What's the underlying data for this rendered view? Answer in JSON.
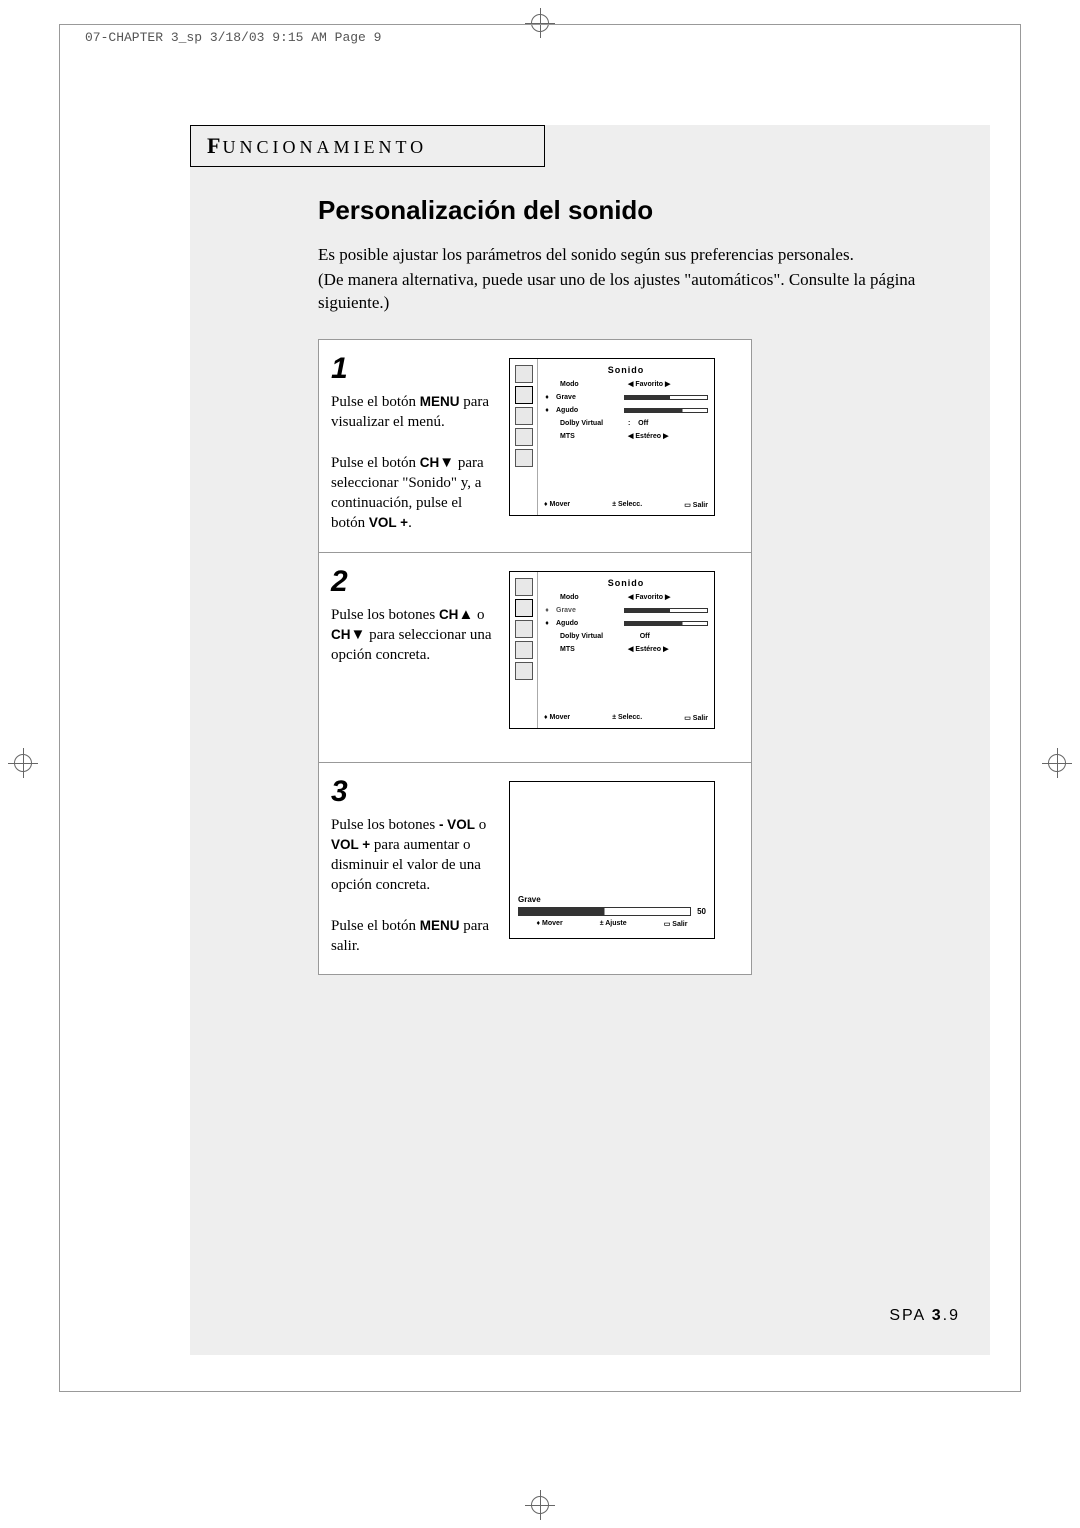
{
  "print": {
    "header": "07-CHAPTER 3_sp  3/18/03 9:15 AM  Page 9"
  },
  "section": {
    "label_initial": "F",
    "label_rest": "UNCIONAMIENTO"
  },
  "page": {
    "title": "Personalización del sonido",
    "intro1": "Es posible ajustar los parámetros del sonido según sus preferencias personales.",
    "intro2": "(De manera alternativa, puede usar uno de los ajustes \"automáticos\". Consulte la página siguiente.)",
    "footer_prefix": "SPA ",
    "footer_num": "3",
    "footer_suffix": ".9"
  },
  "steps": {
    "s1": {
      "num": "1",
      "p1a": "Pulse el botón ",
      "p1b": "MENU",
      "p1c": " para visualizar el menú.",
      "p2a": "Pulse el botón ",
      "p2b": "CH",
      "p2c": " para seleccionar \"Sonido\" y, a continuación, pulse el botón ",
      "p2d": "VOL +",
      "p2e": "."
    },
    "s2": {
      "num": "2",
      "p1a": "Pulse los botones ",
      "p1b": "CH",
      "p1c": " o ",
      "p1d": "CH",
      "p1e": " para seleccionar una opción concreta."
    },
    "s3": {
      "num": "3",
      "p1a": "Pulse los botones ",
      "p1b": "- VOL",
      "p1c": " o ",
      "p1d": "VOL +",
      "p1e": " para aumentar o disminuir el valor de una opción concreta.",
      "p2a": "Pulse el botón ",
      "p2b": "MENU",
      "p2c": " para salir."
    }
  },
  "osd": {
    "title": "Sonido",
    "rows": {
      "modo": {
        "label": "Modo",
        "value": "Favorito"
      },
      "grave": {
        "label": "Grave"
      },
      "agudo": {
        "label": "Agudo"
      },
      "dolby": {
        "label": "Dolby Virtual",
        "value": "Off"
      },
      "mts": {
        "label": "MTS",
        "value": "Estéreo"
      }
    },
    "footer": {
      "mover": "Mover",
      "selecc": "Selecc.",
      "salir": "Salir"
    },
    "slider": {
      "label": "Grave",
      "value": "50",
      "mover": "Mover",
      "ajuste": "Ajuste",
      "salir": "Salir"
    }
  },
  "glyphs": {
    "down": "▼",
    "up": "▲",
    "left": "◀",
    "right": "▶",
    "updown": "♦",
    "pm": "±",
    "exit": "▭"
  }
}
